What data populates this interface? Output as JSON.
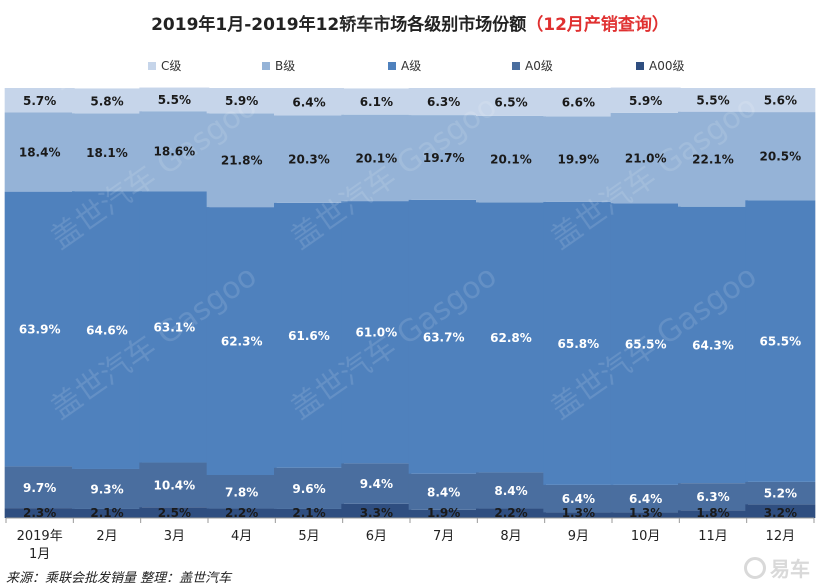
{
  "title": "2019年1月-2019年12轿车市场各级别市场份额",
  "title_highlight": "（12月产销查询）",
  "source": "来源：乘联会批发销量  整理：盖世汽车",
  "watermark_text": "盖世汽车 Gasgoo",
  "logo_text": "易车",
  "chart_data": {
    "type": "bar",
    "stacked": true,
    "percent": true,
    "categories": [
      "2019年1月",
      "2月",
      "3月",
      "4月",
      "5月",
      "6月",
      "7月",
      "8月",
      "9月",
      "10月",
      "11月",
      "12月"
    ],
    "series": [
      {
        "name": "A00级",
        "color": "#2f4e80",
        "values": [
          2.3,
          2.1,
          2.5,
          2.2,
          2.1,
          3.3,
          1.9,
          2.2,
          1.3,
          1.3,
          1.8,
          3.2
        ]
      },
      {
        "name": "A0级",
        "color": "#4a6e9f",
        "values": [
          9.7,
          9.3,
          10.4,
          7.8,
          9.6,
          9.4,
          8.4,
          8.4,
          6.4,
          6.4,
          6.3,
          5.2
        ]
      },
      {
        "name": "A级",
        "color": "#4f81bd",
        "values": [
          63.9,
          64.6,
          63.1,
          62.3,
          61.6,
          61.0,
          63.7,
          62.8,
          65.8,
          65.5,
          64.3,
          65.5
        ]
      },
      {
        "name": "B级",
        "color": "#95b3d7",
        "values": [
          18.4,
          18.1,
          18.6,
          21.8,
          20.3,
          20.1,
          19.7,
          20.1,
          19.9,
          21.0,
          22.1,
          20.5
        ]
      },
      {
        "name": "C级",
        "color": "#c6d5ea",
        "values": [
          5.7,
          5.8,
          5.5,
          5.9,
          6.4,
          6.1,
          6.3,
          6.5,
          6.6,
          5.9,
          5.5,
          5.6
        ]
      }
    ],
    "legend_order": [
      "C级",
      "B级",
      "A级",
      "A0级",
      "A00级"
    ],
    "legend_position": "top",
    "ylim": [
      0,
      100
    ],
    "grid": false
  }
}
